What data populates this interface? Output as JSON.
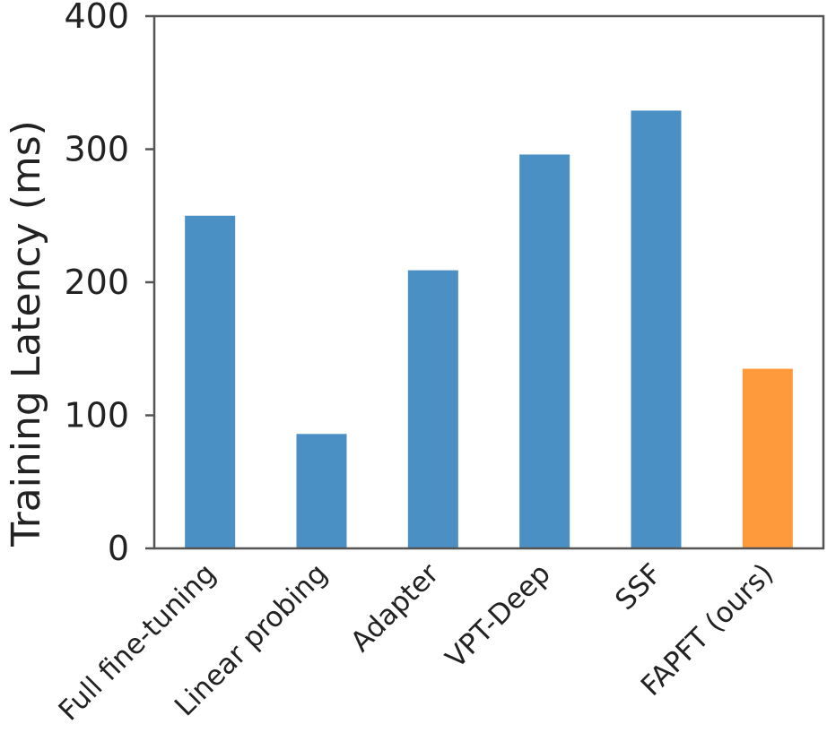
{
  "chart_data": {
    "type": "bar",
    "title": "",
    "xlabel": "",
    "ylabel": "Training Latency (ms)",
    "ylim": [
      0,
      400
    ],
    "yticks": [
      0,
      100,
      200,
      300,
      400
    ],
    "grid": false,
    "categories": [
      "Full fine-tuning",
      "Linear probing",
      "Adapter",
      "VPT-Deep",
      "SSF",
      "FAPFT (ours)"
    ],
    "values": [
      250,
      86,
      209,
      296,
      329,
      135
    ],
    "colors": [
      "#4a90c4",
      "#4a90c4",
      "#4a90c4",
      "#4a90c4",
      "#4a90c4",
      "#ff9a3c"
    ],
    "axis_color": "#555555"
  }
}
